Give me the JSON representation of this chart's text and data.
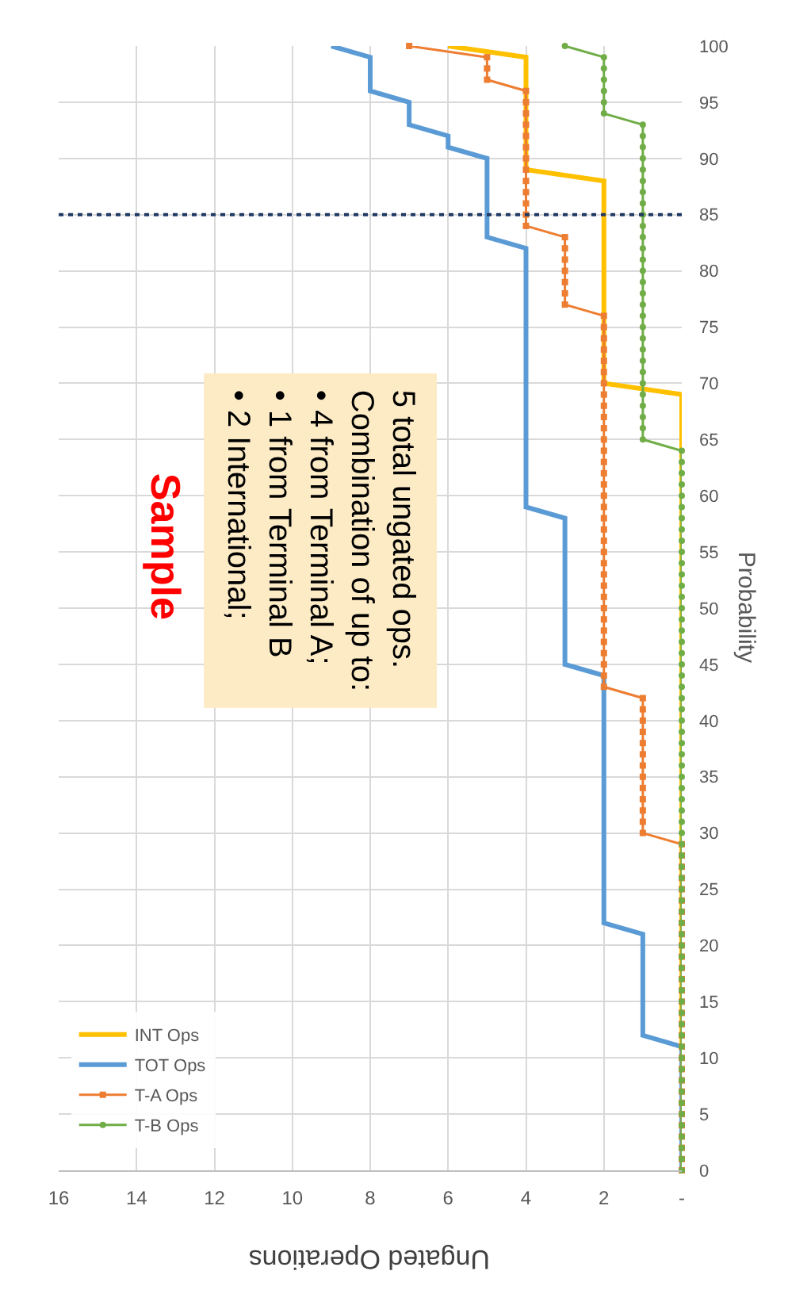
{
  "chart_data": {
    "type": "line",
    "xlabel": "Ungated Operations",
    "ylabel": "Probability",
    "series": [
      {
        "name": "INT Ops",
        "color": "#ffc000",
        "marker": "none",
        "x": [
          0,
          0,
          0,
          0,
          0,
          0,
          0,
          0,
          0,
          0,
          0,
          0,
          0,
          0,
          0,
          0,
          0,
          0,
          0,
          0,
          0,
          0,
          0,
          0,
          0,
          0,
          0,
          0,
          0,
          0,
          0,
          0,
          0,
          0,
          0,
          0,
          0,
          0,
          0,
          0,
          0,
          0,
          0,
          0,
          0,
          0,
          0,
          0,
          0,
          0,
          0,
          0,
          0,
          0,
          0,
          0,
          0,
          0,
          0,
          0,
          2,
          2,
          2,
          2,
          2,
          2,
          2,
          2,
          2,
          2,
          2,
          2,
          2,
          2,
          2,
          2,
          2,
          2,
          2,
          4,
          4,
          4,
          4,
          4,
          4,
          4,
          4,
          4,
          4,
          4,
          6
        ],
        "values": [
          10,
          11,
          12,
          13,
          14,
          15,
          16,
          17,
          18,
          19,
          20,
          21,
          22,
          23,
          24,
          25,
          26,
          27,
          28,
          29,
          30,
          31,
          32,
          33,
          34,
          35,
          36,
          37,
          38,
          39,
          40,
          41,
          42,
          43,
          44,
          45,
          46,
          47,
          48,
          49,
          50,
          51,
          52,
          53,
          54,
          55,
          56,
          57,
          58,
          59,
          60,
          61,
          62,
          63,
          64,
          65,
          66,
          67,
          68,
          69,
          70,
          71,
          72,
          73,
          74,
          75,
          76,
          77,
          78,
          79,
          80,
          81,
          82,
          83,
          84,
          85,
          86,
          87,
          88,
          89,
          90,
          91,
          92,
          93,
          94,
          95,
          96,
          97,
          98,
          99,
          100
        ]
      },
      {
        "name": "TOT Ops",
        "color": "#5b9bd5",
        "marker": "none",
        "x": [
          0,
          0,
          0,
          0,
          0,
          0,
          0,
          0,
          0,
          0,
          0,
          0,
          1,
          1,
          1,
          1,
          1,
          1,
          1,
          1,
          1,
          1,
          2,
          2,
          2,
          2,
          2,
          2,
          2,
          2,
          2,
          2,
          2,
          2,
          2,
          2,
          2,
          2,
          2,
          2,
          2,
          2,
          2,
          2,
          2,
          3,
          3,
          3,
          3,
          3,
          3,
          3,
          3,
          3,
          3,
          3,
          3,
          3,
          3,
          4,
          4,
          4,
          4,
          4,
          4,
          4,
          4,
          4,
          4,
          4,
          4,
          4,
          4,
          4,
          4,
          4,
          4,
          4,
          4,
          4,
          4,
          4,
          4,
          5,
          5,
          5,
          5,
          5,
          5,
          5,
          5,
          6,
          6,
          7,
          7,
          7,
          8,
          8,
          8,
          8,
          9
        ],
        "values": [
          0,
          1,
          2,
          3,
          4,
          5,
          6,
          7,
          8,
          9,
          10,
          11,
          12,
          13,
          14,
          15,
          16,
          17,
          18,
          19,
          20,
          21,
          22,
          23,
          24,
          25,
          26,
          27,
          28,
          29,
          30,
          31,
          32,
          33,
          34,
          35,
          36,
          37,
          38,
          39,
          40,
          41,
          42,
          43,
          44,
          45,
          46,
          47,
          48,
          49,
          50,
          51,
          52,
          53,
          54,
          55,
          56,
          57,
          58,
          59,
          60,
          61,
          62,
          63,
          64,
          65,
          66,
          67,
          68,
          69,
          70,
          71,
          72,
          73,
          74,
          75,
          76,
          77,
          78,
          79,
          80,
          81,
          82,
          83,
          84,
          85,
          86,
          87,
          88,
          89,
          90,
          91,
          92,
          93,
          94,
          95,
          96,
          97,
          98,
          99,
          100
        ]
      },
      {
        "name": "T-A Ops",
        "color": "#ed7d31",
        "marker": "square",
        "x": [
          0,
          0,
          0,
          0,
          0,
          0,
          0,
          0,
          0,
          0,
          0,
          0,
          0,
          0,
          0,
          0,
          0,
          0,
          0,
          0,
          0,
          0,
          0,
          0,
          0,
          0,
          0,
          0,
          0,
          0,
          1,
          1,
          1,
          1,
          1,
          1,
          1,
          1,
          1,
          1,
          1,
          1,
          1,
          2,
          2,
          2,
          2,
          2,
          2,
          2,
          2,
          2,
          2,
          2,
          2,
          2,
          2,
          2,
          2,
          2,
          2,
          2,
          2,
          2,
          2,
          2,
          2,
          2,
          2,
          2,
          2,
          2,
          2,
          2,
          2,
          2,
          2,
          3,
          3,
          3,
          3,
          3,
          3,
          3,
          4,
          4,
          4,
          4,
          4,
          4,
          4,
          4,
          4,
          4,
          4,
          4,
          4,
          5,
          5,
          5,
          7
        ],
        "values": [
          0,
          1,
          2,
          3,
          4,
          5,
          6,
          7,
          8,
          9,
          10,
          11,
          12,
          13,
          14,
          15,
          16,
          17,
          18,
          19,
          20,
          21,
          22,
          23,
          24,
          25,
          26,
          27,
          28,
          29,
          30,
          31,
          32,
          33,
          34,
          35,
          36,
          37,
          38,
          39,
          40,
          41,
          42,
          43,
          44,
          45,
          46,
          47,
          48,
          49,
          50,
          51,
          52,
          53,
          54,
          55,
          56,
          57,
          58,
          59,
          60,
          61,
          62,
          63,
          64,
          65,
          66,
          67,
          68,
          69,
          70,
          71,
          72,
          73,
          74,
          75,
          76,
          77,
          78,
          79,
          80,
          81,
          82,
          83,
          84,
          85,
          86,
          87,
          88,
          89,
          90,
          91,
          92,
          93,
          94,
          95,
          96,
          97,
          98,
          99,
          100
        ]
      },
      {
        "name": "T-B Ops",
        "color": "#70ad47",
        "marker": "circle",
        "x": [
          0,
          0,
          0,
          0,
          0,
          0,
          0,
          0,
          0,
          0,
          0,
          0,
          0,
          0,
          0,
          0,
          0,
          0,
          0,
          0,
          0,
          0,
          0,
          0,
          0,
          0,
          0,
          0,
          0,
          0,
          0,
          0,
          0,
          0,
          0,
          0,
          0,
          0,
          0,
          0,
          0,
          0,
          0,
          0,
          0,
          0,
          0,
          0,
          0,
          0,
          0,
          0,
          0,
          0,
          0,
          0,
          0,
          0,
          0,
          0,
          0,
          0,
          0,
          0,
          0,
          1,
          1,
          1,
          1,
          1,
          1,
          1,
          1,
          1,
          1,
          1,
          1,
          1,
          1,
          1,
          1,
          1,
          1,
          1,
          1,
          1,
          1,
          1,
          1,
          1,
          1,
          1,
          1,
          1,
          2,
          2,
          2,
          2,
          2,
          2,
          3
        ],
        "values": [
          0,
          1,
          2,
          3,
          4,
          5,
          6,
          7,
          8,
          9,
          10,
          11,
          12,
          13,
          14,
          15,
          16,
          17,
          18,
          19,
          20,
          21,
          22,
          23,
          24,
          25,
          26,
          27,
          28,
          29,
          30,
          31,
          32,
          33,
          34,
          35,
          36,
          37,
          38,
          39,
          40,
          41,
          42,
          43,
          44,
          45,
          46,
          47,
          48,
          49,
          50,
          51,
          52,
          53,
          54,
          55,
          56,
          57,
          58,
          59,
          60,
          61,
          62,
          63,
          64,
          65,
          66,
          67,
          68,
          69,
          70,
          71,
          72,
          73,
          74,
          75,
          76,
          77,
          78,
          79,
          80,
          81,
          82,
          83,
          84,
          85,
          86,
          87,
          88,
          89,
          90,
          91,
          92,
          93,
          94,
          95,
          96,
          97,
          98,
          99,
          100
        ]
      }
    ],
    "xlim": [
      16,
      0
    ],
    "xticks": [
      16,
      14,
      12,
      10,
      8,
      6,
      4,
      2,
      {
        "value": 0,
        "label": "-"
      }
    ],
    "ylim": [
      0,
      100
    ],
    "yticks": [
      0,
      5,
      10,
      15,
      20,
      25,
      30,
      35,
      40,
      45,
      50,
      55,
      60,
      65,
      70,
      75,
      80,
      85,
      90,
      95,
      100
    ],
    "ref_lines": [
      {
        "axis": "y",
        "value": 85,
        "color": "#1f3864",
        "line_style": "dotted"
      }
    ],
    "annotations": [
      "Sample",
      "5 total ungated ops.\nCombination of up to:\n• 4 from Terminal A;\n• 1 from Terminal B\n• 2 International;"
    ],
    "grid": true,
    "legend": "bottom left"
  }
}
